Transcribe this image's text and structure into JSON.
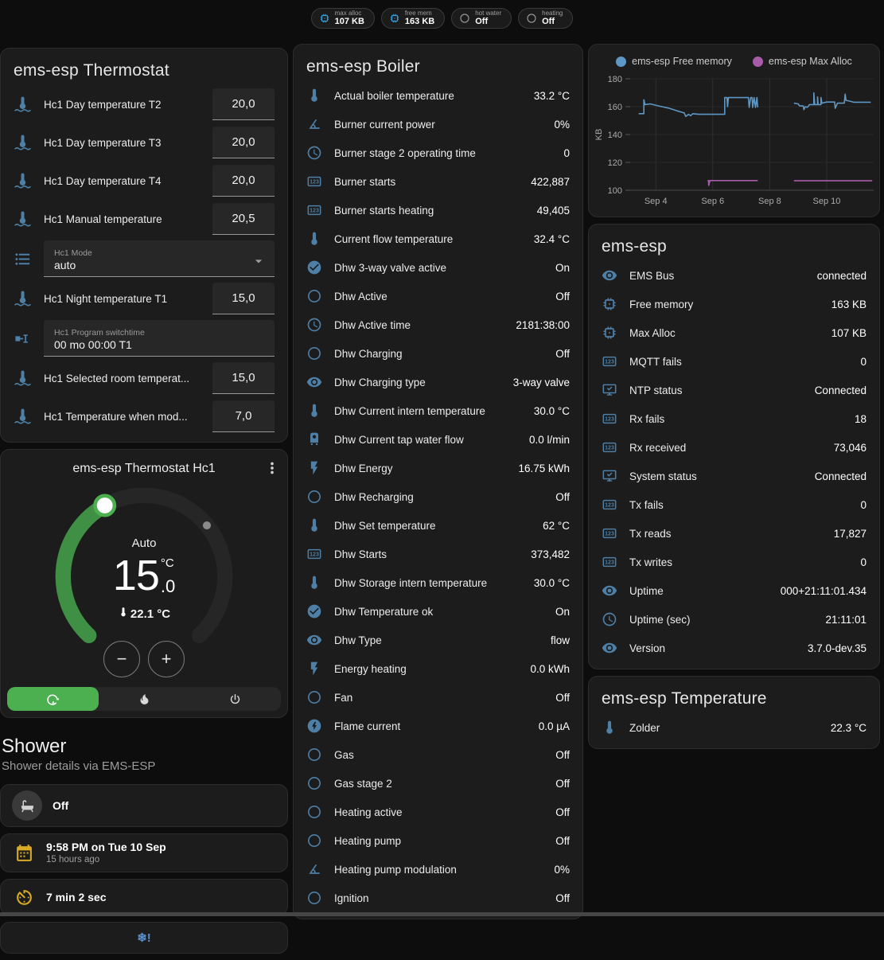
{
  "header": {
    "badges": [
      {
        "icon": "memory",
        "icon_color": "#35a0dc",
        "label": "max alloc",
        "value": "107 KB"
      },
      {
        "icon": "memory",
        "icon_color": "#35a0dc",
        "label": "free mem",
        "value": "163 KB"
      },
      {
        "icon": "circle-outline",
        "icon_color": "#9e9e9e",
        "label": "hot water",
        "value": "Off"
      },
      {
        "icon": "circle-outline",
        "icon_color": "#9e9e9e",
        "label": "heating",
        "value": "Off"
      }
    ]
  },
  "thermostat_card": {
    "title": "ems-esp Thermostat",
    "rows": [
      {
        "type": "number",
        "icon": "thermometer-water",
        "label": "Hc1 Day temperature T2",
        "value": "20,0"
      },
      {
        "type": "number",
        "icon": "thermometer-water",
        "label": "Hc1 Day temperature T3",
        "value": "20,0"
      },
      {
        "type": "number",
        "icon": "thermometer-water",
        "label": "Hc1 Day temperature T4",
        "value": "20,0"
      },
      {
        "type": "number",
        "icon": "thermometer-water",
        "label": "Hc1 Manual temperature",
        "value": "20,5"
      },
      {
        "type": "select",
        "icon": "format-list",
        "label": "Hc1 Mode",
        "value": "auto"
      },
      {
        "type": "number",
        "icon": "thermometer-water",
        "label": "Hc1 Night temperature T1",
        "value": "15,0"
      },
      {
        "type": "text",
        "icon": "pipe-valve",
        "label": "Hc1 Program switchtime",
        "value": "00 mo 00:00 T1"
      },
      {
        "type": "number",
        "icon": "thermometer-water",
        "label": "Hc1 Selected room temperat...",
        "value": "15,0"
      },
      {
        "type": "number",
        "icon": "thermometer-water",
        "label": "Hc1 Temperature when mod...",
        "value": "7,0"
      }
    ]
  },
  "dial_card": {
    "title": "ems-esp Thermostat Hc1",
    "mode_label": "Auto",
    "target_int": "15",
    "target_dec": ".0",
    "target_unit": "°C",
    "current_temp": "22.1 °C",
    "minus_label": "−",
    "plus_label": "+",
    "modes": [
      {
        "icon": "auto-mode",
        "active": true
      },
      {
        "icon": "fire",
        "active": false
      },
      {
        "icon": "power",
        "active": false
      }
    ]
  },
  "shower": {
    "title": "Shower",
    "subtitle": "Shower details via EMS-ESP",
    "cards": [
      {
        "icon": "bathtub",
        "style": "circle",
        "primary": "Off",
        "secondary": ""
      },
      {
        "icon": "calendar",
        "style": "yellow",
        "primary": "9:58 PM on Tue 10 Sep",
        "secondary": "15 hours ago"
      },
      {
        "icon": "timer",
        "style": "yellow",
        "primary": "7 min 2 sec",
        "secondary": ""
      },
      {
        "icon": "snowflake-alert",
        "style": "center",
        "primary": "",
        "secondary": ""
      }
    ]
  },
  "boiler_card": {
    "title": "ems-esp Boiler",
    "rows": [
      {
        "icon": "thermometer",
        "label": "Actual boiler temperature",
        "value": "33.2 °C"
      },
      {
        "icon": "angle-acute",
        "label": "Burner current power",
        "value": "0%"
      },
      {
        "icon": "clock",
        "label": "Burner stage 2 operating time",
        "value": "0"
      },
      {
        "icon": "counter",
        "label": "Burner starts",
        "value": "422,887"
      },
      {
        "icon": "counter",
        "label": "Burner starts heating",
        "value": "49,405"
      },
      {
        "icon": "thermometer",
        "label": "Current flow temperature",
        "value": "32.4 °C"
      },
      {
        "icon": "check-circle",
        "label": "Dhw 3-way valve active",
        "value": "On"
      },
      {
        "icon": "circle-outline",
        "label": "Dhw Active",
        "value": "Off"
      },
      {
        "icon": "clock",
        "label": "Dhw Active time",
        "value": "2181:38:00"
      },
      {
        "icon": "circle-outline",
        "label": "Dhw Charging",
        "value": "Off"
      },
      {
        "icon": "eye",
        "label": "Dhw Charging type",
        "value": "3-way valve"
      },
      {
        "icon": "thermometer",
        "label": "Dhw Current intern temperature",
        "value": "30.0 °C"
      },
      {
        "icon": "water-boiler",
        "label": "Dhw Current tap water flow",
        "value": "0.0 l/min"
      },
      {
        "icon": "flash",
        "label": "Dhw Energy",
        "value": "16.75 kWh"
      },
      {
        "icon": "circle-outline",
        "label": "Dhw Recharging",
        "value": "Off"
      },
      {
        "icon": "thermometer",
        "label": "Dhw Set temperature",
        "value": "62 °C"
      },
      {
        "icon": "counter",
        "label": "Dhw Starts",
        "value": "373,482"
      },
      {
        "icon": "thermometer",
        "label": "Dhw Storage intern temperature",
        "value": "30.0 °C"
      },
      {
        "icon": "check-circle",
        "label": "Dhw Temperature ok",
        "value": "On"
      },
      {
        "icon": "eye",
        "label": "Dhw Type",
        "value": "flow"
      },
      {
        "icon": "flash",
        "label": "Energy heating",
        "value": "0.0 kWh"
      },
      {
        "icon": "circle-outline",
        "label": "Fan",
        "value": "Off"
      },
      {
        "icon": "flash-circle",
        "label": "Flame current",
        "value": "0.0 µA"
      },
      {
        "icon": "circle-outline",
        "label": "Gas",
        "value": "Off"
      },
      {
        "icon": "circle-outline",
        "label": "Gas stage 2",
        "value": "Off"
      },
      {
        "icon": "circle-outline",
        "label": "Heating active",
        "value": "Off"
      },
      {
        "icon": "circle-outline",
        "label": "Heating pump",
        "value": "Off"
      },
      {
        "icon": "angle-acute",
        "label": "Heating pump modulation",
        "value": "0%"
      },
      {
        "icon": "circle-outline",
        "label": "Ignition",
        "value": "Off"
      }
    ]
  },
  "emsesp_card": {
    "title": "ems-esp",
    "rows": [
      {
        "icon": "eye",
        "label": "EMS Bus",
        "value": "connected"
      },
      {
        "icon": "memory",
        "label": "Free memory",
        "value": "163 KB"
      },
      {
        "icon": "memory",
        "label": "Max Alloc",
        "value": "107 KB"
      },
      {
        "icon": "counter",
        "label": "MQTT fails",
        "value": "0"
      },
      {
        "icon": "monitor-check",
        "label": "NTP status",
        "value": "Connected"
      },
      {
        "icon": "counter",
        "label": "Rx fails",
        "value": "18"
      },
      {
        "icon": "counter",
        "label": "Rx received",
        "value": "73,046"
      },
      {
        "icon": "monitor-check",
        "label": "System status",
        "value": "Connected"
      },
      {
        "icon": "counter",
        "label": "Tx fails",
        "value": "0"
      },
      {
        "icon": "counter",
        "label": "Tx reads",
        "value": "17,827"
      },
      {
        "icon": "counter",
        "label": "Tx writes",
        "value": "0"
      },
      {
        "icon": "eye",
        "label": "Uptime",
        "value": "000+21:11:01.434"
      },
      {
        "icon": "clock",
        "label": "Uptime (sec)",
        "value": "21:11:01"
      },
      {
        "icon": "eye",
        "label": "Version",
        "value": "3.7.0-dev.35"
      }
    ]
  },
  "temp_card": {
    "title": "ems-esp Temperature",
    "rows": [
      {
        "icon": "thermometer",
        "label": "Zolder",
        "value": "22.3 °C"
      }
    ]
  },
  "colors": {
    "accent_green": "#4caf50",
    "dial_green": "#3f8f44",
    "icon_blue": "#4e7fa6",
    "yellow": "#d9ab25",
    "chart_blue": "#5e97c4",
    "chart_purple": "#a85ca8"
  },
  "chart_data": {
    "type": "line",
    "title": "",
    "xlabel": "",
    "ylabel": "KB",
    "grid": true,
    "legend_position": "top",
    "ylim": [
      100,
      180
    ],
    "yticks": [
      100,
      120,
      140,
      160,
      180
    ],
    "xlim": [
      3.1,
      11.65
    ],
    "xticks": [
      {
        "x": 4,
        "label": "Sep 4"
      },
      {
        "x": 6,
        "label": "Sep 6"
      },
      {
        "x": 8,
        "label": "Sep 8"
      },
      {
        "x": 10,
        "label": "Sep 10"
      }
    ],
    "series": [
      {
        "name": "ems-esp Free memory",
        "color": "#5e97c4",
        "points": [
          [
            3.4,
            155
          ],
          [
            3.58,
            155
          ],
          [
            3.58,
            165
          ],
          [
            3.62,
            161.5
          ],
          [
            3.8,
            162
          ],
          [
            4.1,
            160.5
          ],
          [
            4.45,
            159
          ],
          [
            4.75,
            157
          ],
          [
            5.0,
            155.5
          ],
          [
            5.05,
            153
          ],
          [
            5.15,
            154.5
          ],
          [
            5.22,
            153.5
          ],
          [
            5.3,
            155
          ],
          [
            5.5,
            154.5
          ],
          [
            6.42,
            154.5
          ],
          [
            6.42,
            166.5
          ],
          [
            6.5,
            166.5
          ],
          [
            6.52,
            160
          ],
          [
            6.55,
            166.5
          ],
          [
            7.25,
            166.5
          ],
          [
            7.28,
            159.5
          ],
          [
            7.33,
            166.5
          ],
          [
            7.38,
            166.5
          ],
          [
            7.4,
            159.5
          ],
          [
            7.45,
            166.5
          ],
          [
            7.5,
            159.5
          ],
          [
            7.55,
            166.5
          ],
          [
            7.58,
            159.5
          ],
          null,
          [
            8.85,
            162.5
          ],
          [
            9.0,
            162
          ],
          [
            9.05,
            160.5
          ],
          [
            9.18,
            160.5
          ],
          [
            9.2,
            157.8
          ],
          [
            9.25,
            160
          ],
          [
            9.32,
            159.5
          ],
          [
            9.4,
            161.5
          ],
          [
            9.55,
            161.5
          ],
          [
            9.55,
            169.9
          ],
          [
            9.58,
            161.5
          ],
          [
            9.68,
            161.5
          ],
          [
            9.68,
            167
          ],
          [
            9.7,
            161.5
          ],
          [
            9.8,
            161.5
          ],
          [
            9.8,
            166.5
          ],
          [
            9.83,
            162.5
          ],
          [
            10.0,
            163.3
          ],
          [
            10.28,
            163.3
          ],
          [
            10.3,
            158.8
          ],
          [
            10.38,
            162.5
          ],
          [
            10.62,
            162.5
          ],
          [
            10.65,
            169
          ],
          [
            10.68,
            164.5
          ],
          [
            10.8,
            164
          ],
          [
            10.95,
            163.2
          ],
          [
            11.55,
            163.2
          ]
        ]
      },
      {
        "name": "ems-esp Max Alloc",
        "color": "#a85ca8",
        "points": [
          [
            5.82,
            107
          ],
          [
            5.85,
            107
          ],
          [
            5.86,
            103.5
          ],
          [
            5.9,
            107
          ],
          [
            7.58,
            107
          ],
          null,
          [
            8.85,
            106.8
          ],
          [
            11.6,
            106.8
          ]
        ]
      }
    ]
  }
}
